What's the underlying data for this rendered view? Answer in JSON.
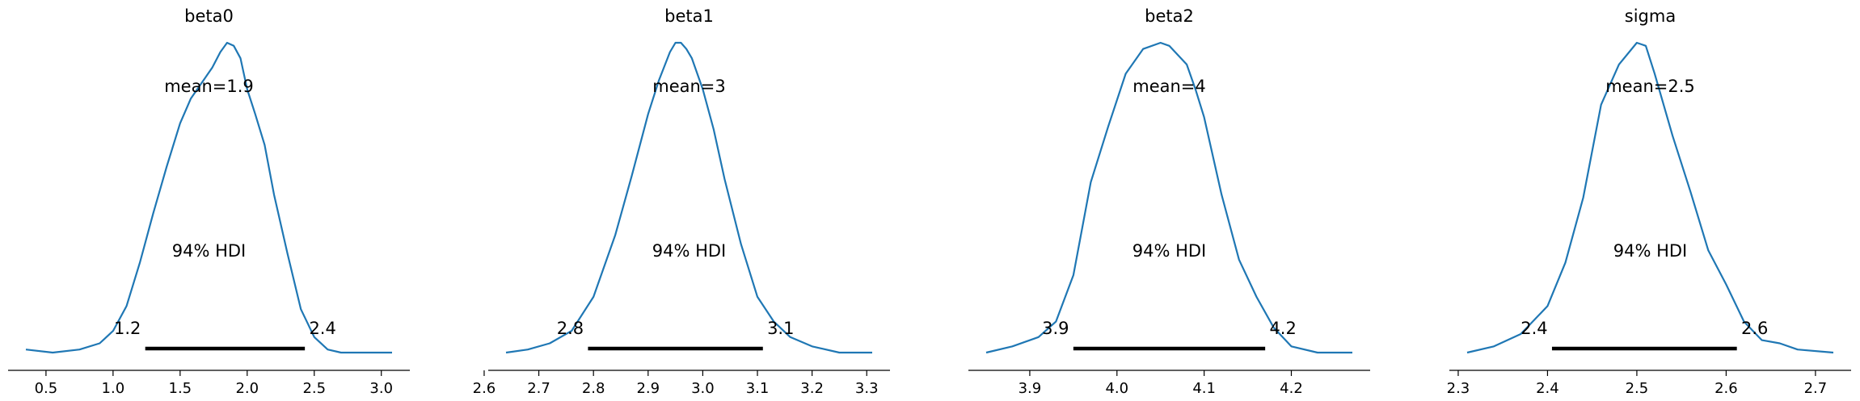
{
  "chart_data": [
    {
      "type": "area",
      "title": "beta0",
      "mean_label": "mean=1.9",
      "hdi_label": "94% HDI",
      "hdi_low_label": "1.2",
      "hdi_high_label": "2.4",
      "hdi": [
        1.24,
        2.43
      ],
      "xlim": [
        0.35,
        3.08
      ],
      "xticks": [
        0.5,
        1.0,
        1.5,
        2.0,
        2.5,
        3.0
      ],
      "xtick_labels": [
        "0.5",
        "1.0",
        "1.5",
        "2.0",
        "2.5",
        "3.0"
      ],
      "density": {
        "x": [
          0.35,
          0.55,
          0.75,
          0.9,
          1.0,
          1.1,
          1.2,
          1.3,
          1.4,
          1.5,
          1.58,
          1.66,
          1.74,
          1.8,
          1.85,
          1.9,
          1.95,
          2.0,
          2.06,
          2.13,
          2.2,
          2.3,
          2.4,
          2.5,
          2.6,
          2.7,
          2.85,
          3.0,
          3.08
        ],
        "y": [
          0.01,
          0.0,
          0.01,
          0.03,
          0.07,
          0.15,
          0.29,
          0.45,
          0.6,
          0.74,
          0.82,
          0.87,
          0.92,
          0.97,
          1.0,
          0.99,
          0.95,
          0.85,
          0.77,
          0.67,
          0.51,
          0.32,
          0.14,
          0.05,
          0.01,
          0.0,
          0.0,
          0.0,
          0.0
        ]
      }
    },
    {
      "type": "area",
      "title": "beta1",
      "mean_label": "mean=3",
      "hdi_label": "94% HDI",
      "hdi_low_label": "2.8",
      "hdi_high_label": "3.1",
      "hdi": [
        2.79,
        3.11
      ],
      "xlim": [
        2.64,
        3.31
      ],
      "xticks": [
        2.6,
        2.7,
        2.8,
        2.9,
        3.0,
        3.1,
        3.2,
        3.3
      ],
      "xtick_labels": [
        "2.6",
        "2.7",
        "2.8",
        "2.9",
        "3.0",
        "3.1",
        "3.2",
        "3.3"
      ],
      "density": {
        "x": [
          2.64,
          2.68,
          2.72,
          2.76,
          2.8,
          2.84,
          2.87,
          2.9,
          2.92,
          2.94,
          2.95,
          2.96,
          2.97,
          2.98,
          3.0,
          3.02,
          3.04,
          3.07,
          3.1,
          3.13,
          3.16,
          3.2,
          3.25,
          3.31
        ],
        "y": [
          0.0,
          0.01,
          0.03,
          0.07,
          0.18,
          0.38,
          0.57,
          0.77,
          0.88,
          0.97,
          1.0,
          1.0,
          0.98,
          0.95,
          0.85,
          0.72,
          0.56,
          0.35,
          0.18,
          0.1,
          0.05,
          0.02,
          0.0,
          0.0
        ]
      }
    },
    {
      "type": "area",
      "title": "beta2",
      "mean_label": "mean=4",
      "hdi_label": "94% HDI",
      "hdi_low_label": "3.9",
      "hdi_high_label": "4.2",
      "hdi": [
        3.95,
        4.17
      ],
      "xlim": [
        3.85,
        4.27
      ],
      "xticks": [
        3.9,
        4.0,
        4.1,
        4.2
      ],
      "xtick_labels": [
        "3.9",
        "4.0",
        "4.1",
        "4.2"
      ],
      "density": {
        "x": [
          3.85,
          3.88,
          3.91,
          3.93,
          3.95,
          3.97,
          3.99,
          4.01,
          4.03,
          4.05,
          4.06,
          4.08,
          4.09,
          4.1,
          4.12,
          4.14,
          4.16,
          4.18,
          4.2,
          4.23,
          4.27
        ],
        "y": [
          0.0,
          0.02,
          0.05,
          0.1,
          0.25,
          0.55,
          0.73,
          0.9,
          0.98,
          1.0,
          0.99,
          0.93,
          0.85,
          0.76,
          0.51,
          0.3,
          0.18,
          0.08,
          0.02,
          0.0,
          0.0
        ]
      }
    },
    {
      "type": "area",
      "title": "sigma",
      "mean_label": "mean=2.5",
      "hdi_label": "94% HDI",
      "hdi_low_label": "2.4",
      "hdi_high_label": "2.6",
      "hdi": [
        2.405,
        2.612
      ],
      "xlim": [
        2.31,
        2.72
      ],
      "xticks": [
        2.3,
        2.4,
        2.5,
        2.6,
        2.7
      ],
      "xtick_labels": [
        "2.3",
        "2.4",
        "2.5",
        "2.6",
        "2.7"
      ],
      "density": {
        "x": [
          2.31,
          2.34,
          2.37,
          2.4,
          2.42,
          2.44,
          2.46,
          2.48,
          2.5,
          2.51,
          2.52,
          2.54,
          2.56,
          2.58,
          2.6,
          2.62,
          2.64,
          2.66,
          2.68,
          2.72
        ],
        "y": [
          0.0,
          0.02,
          0.06,
          0.15,
          0.29,
          0.5,
          0.8,
          0.93,
          1.0,
          0.99,
          0.9,
          0.7,
          0.52,
          0.33,
          0.22,
          0.1,
          0.04,
          0.03,
          0.01,
          0.0
        ]
      }
    }
  ],
  "colors": {
    "curve": "#1f77b4",
    "hdi_bar": "#000000",
    "axis": "#000000"
  }
}
